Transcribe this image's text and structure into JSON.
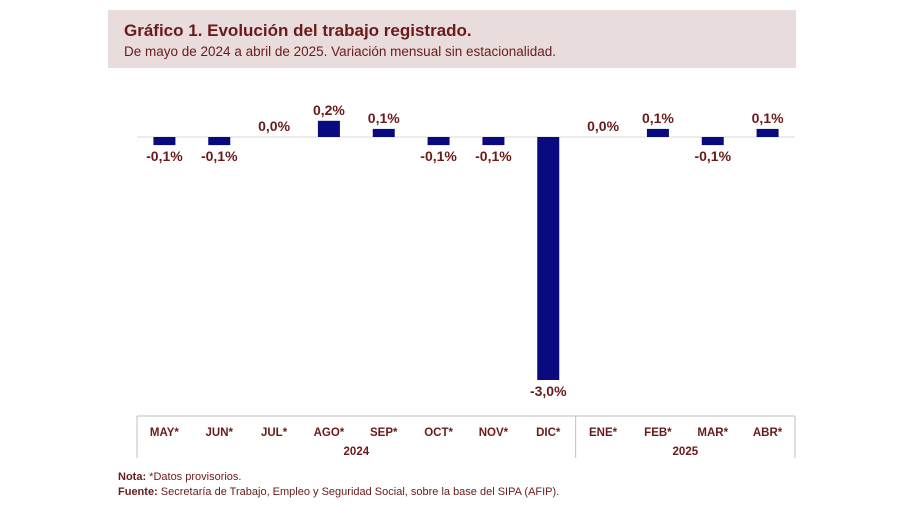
{
  "header": {
    "title": "Gráfico 1. Evolución del trabajo registrado.",
    "subtitle": "De mayo de 2024 a abril de 2025. Variación mensual sin estacionalidad."
  },
  "chart_data": {
    "type": "bar",
    "title": "Gráfico 1. Evolución del trabajo registrado.",
    "subtitle": "De mayo de 2024 a abril de 2025. Variación mensual sin estacionalidad.",
    "categories": [
      "MAY*",
      "JUN*",
      "JUL*",
      "AGO*",
      "SEP*",
      "OCT*",
      "NOV*",
      "DIC*",
      "ENE*",
      "FEB*",
      "MAR*",
      "ABR*"
    ],
    "values": [
      -0.1,
      -0.1,
      0.0,
      0.2,
      0.1,
      -0.1,
      -0.1,
      -3.0,
      0.0,
      0.1,
      -0.1,
      0.1
    ],
    "labels": [
      "-0,1%",
      "-0,1%",
      "0,0%",
      "0,2%",
      "0,1%",
      "-0,1%",
      "-0,1%",
      "-3,0%",
      "0,0%",
      "0,1%",
      "-0,1%",
      "0,1%"
    ],
    "year_groups": [
      {
        "label": "2024",
        "start": 0,
        "end": 7
      },
      {
        "label": "2025",
        "start": 8,
        "end": 11
      }
    ],
    "ylim": [
      -3.1,
      0.2
    ],
    "xlabel": "",
    "ylabel": "",
    "bar_color": "#0a0a80",
    "label_color": "#6b1a1a"
  },
  "notes": {
    "nota_label": "Nota:",
    "nota_text": " *Datos provisorios.",
    "fuente_label": "Fuente:",
    "fuente_text": " Secretaría de Trabajo, Empleo y Seguridad Social, sobre la base del SIPA (AFIP)."
  }
}
